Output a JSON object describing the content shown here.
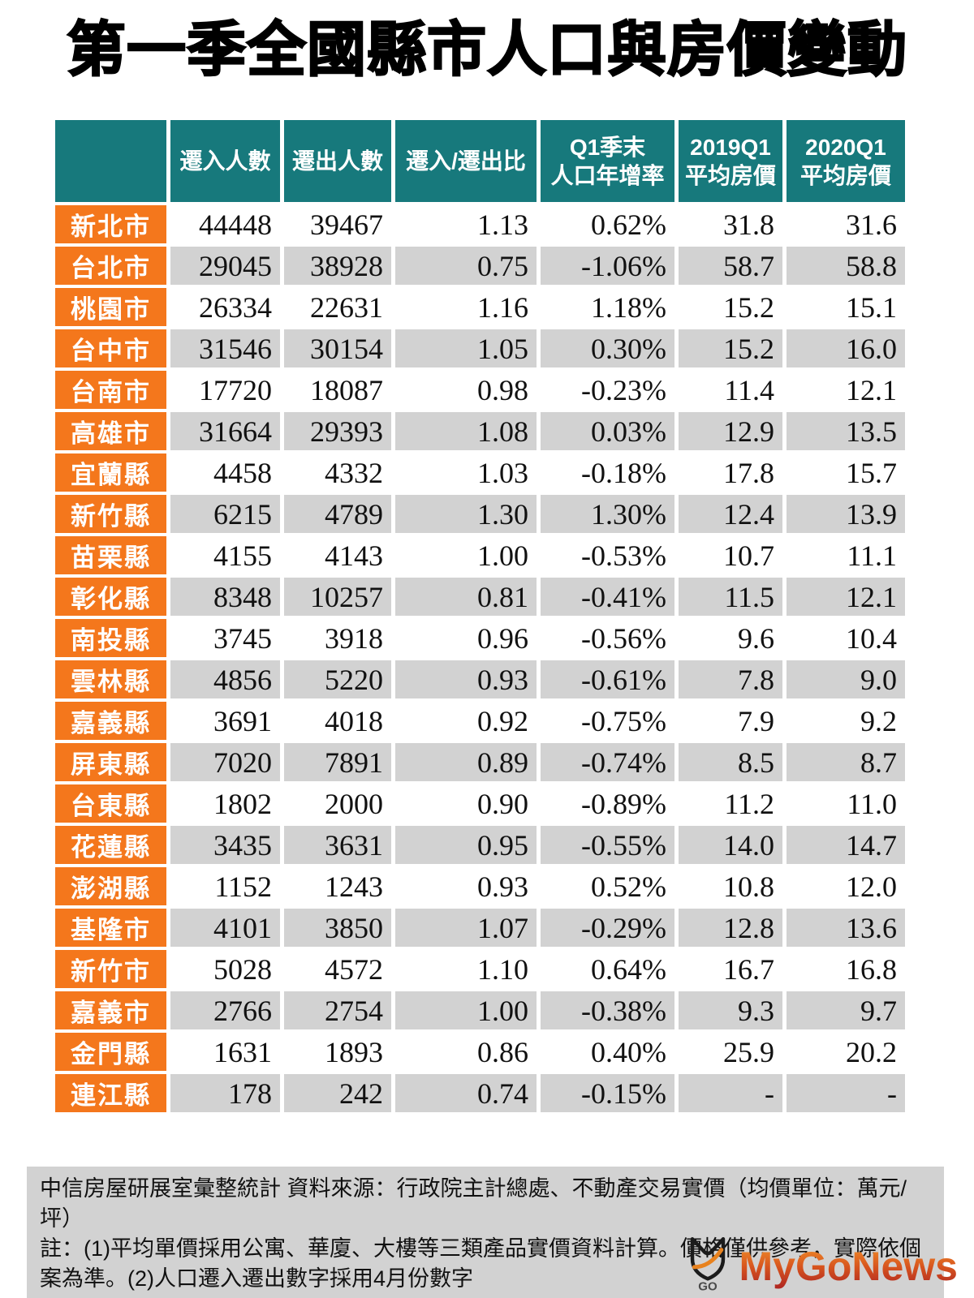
{
  "title": "第一季全國縣市人口與房價變動",
  "chart_data": {
    "type": "table",
    "corner_label": "",
    "columns": [
      "遷入人數",
      "遷出人數",
      "遷入/遷出比",
      "Q1季末\n人口年增率",
      "2019Q1\n平均房價",
      "2020Q1\n平均房價"
    ],
    "rows": [
      {
        "name": "新北市",
        "values": [
          "44448",
          "39467",
          "1.13",
          "0.62%",
          "31.8",
          "31.6"
        ]
      },
      {
        "name": "台北市",
        "values": [
          "29045",
          "38928",
          "0.75",
          "-1.06%",
          "58.7",
          "58.8"
        ]
      },
      {
        "name": "桃園市",
        "values": [
          "26334",
          "22631",
          "1.16",
          "1.18%",
          "15.2",
          "15.1"
        ]
      },
      {
        "name": "台中市",
        "values": [
          "31546",
          "30154",
          "1.05",
          "0.30%",
          "15.2",
          "16.0"
        ]
      },
      {
        "name": "台南市",
        "values": [
          "17720",
          "18087",
          "0.98",
          "-0.23%",
          "11.4",
          "12.1"
        ]
      },
      {
        "name": "高雄市",
        "values": [
          "31664",
          "29393",
          "1.08",
          "0.03%",
          "12.9",
          "13.5"
        ]
      },
      {
        "name": "宜蘭縣",
        "values": [
          "4458",
          "4332",
          "1.03",
          "-0.18%",
          "17.8",
          "15.7"
        ]
      },
      {
        "name": "新竹縣",
        "values": [
          "6215",
          "4789",
          "1.30",
          "1.30%",
          "12.4",
          "13.9"
        ]
      },
      {
        "name": "苗栗縣",
        "values": [
          "4155",
          "4143",
          "1.00",
          "-0.53%",
          "10.7",
          "11.1"
        ]
      },
      {
        "name": "彰化縣",
        "values": [
          "8348",
          "10257",
          "0.81",
          "-0.41%",
          "11.5",
          "12.1"
        ]
      },
      {
        "name": "南投縣",
        "values": [
          "3745",
          "3918",
          "0.96",
          "-0.56%",
          "9.6",
          "10.4"
        ]
      },
      {
        "name": "雲林縣",
        "values": [
          "4856",
          "5220",
          "0.93",
          "-0.61%",
          "7.8",
          "9.0"
        ]
      },
      {
        "name": "嘉義縣",
        "values": [
          "3691",
          "4018",
          "0.92",
          "-0.75%",
          "7.9",
          "9.2"
        ]
      },
      {
        "name": "屏東縣",
        "values": [
          "7020",
          "7891",
          "0.89",
          "-0.74%",
          "8.5",
          "8.7"
        ]
      },
      {
        "name": "台東縣",
        "values": [
          "1802",
          "2000",
          "0.90",
          "-0.89%",
          "11.2",
          "11.0"
        ]
      },
      {
        "name": "花蓮縣",
        "values": [
          "3435",
          "3631",
          "0.95",
          "-0.55%",
          "14.0",
          "14.7"
        ]
      },
      {
        "name": "澎湖縣",
        "values": [
          "1152",
          "1243",
          "0.93",
          "0.52%",
          "10.8",
          "12.0"
        ]
      },
      {
        "name": "基隆市",
        "values": [
          "4101",
          "3850",
          "1.07",
          "-0.29%",
          "12.8",
          "13.6"
        ]
      },
      {
        "name": "新竹市",
        "values": [
          "5028",
          "4572",
          "1.10",
          "0.64%",
          "16.7",
          "16.8"
        ]
      },
      {
        "name": "嘉義市",
        "values": [
          "2766",
          "2754",
          "1.00",
          "-0.38%",
          "9.3",
          "9.7"
        ]
      },
      {
        "name": "金門縣",
        "values": [
          "1631",
          "1893",
          "0.86",
          "0.40%",
          "25.9",
          "20.2"
        ]
      },
      {
        "name": "連江縣",
        "values": [
          "178",
          "242",
          "0.74",
          "-0.15%",
          "-",
          "-"
        ]
      }
    ]
  },
  "footnote": {
    "source": "中信房屋研展室彙整統計 資料來源：行政院主計總處、不動產交易實價（均價單位：萬元/坪）",
    "note": "註：(1)平均單價採用公寓、華廈、大樓等三類產品實價資料計算。價格僅供參考，實際依個案為準。(2)人口遷入遷出數字採用4月份數字"
  },
  "logo": {
    "text": "MyGoNews",
    "icon_label": "GO"
  },
  "colors": {
    "header_teal": "#17797c",
    "label_orange": "#f4771c",
    "stripe_gray": "#d2d2d2",
    "swoosh_orange": "#e8821e",
    "logo_gradient_top": "#ef8c2a",
    "logo_gradient_bottom": "#a81f22"
  }
}
